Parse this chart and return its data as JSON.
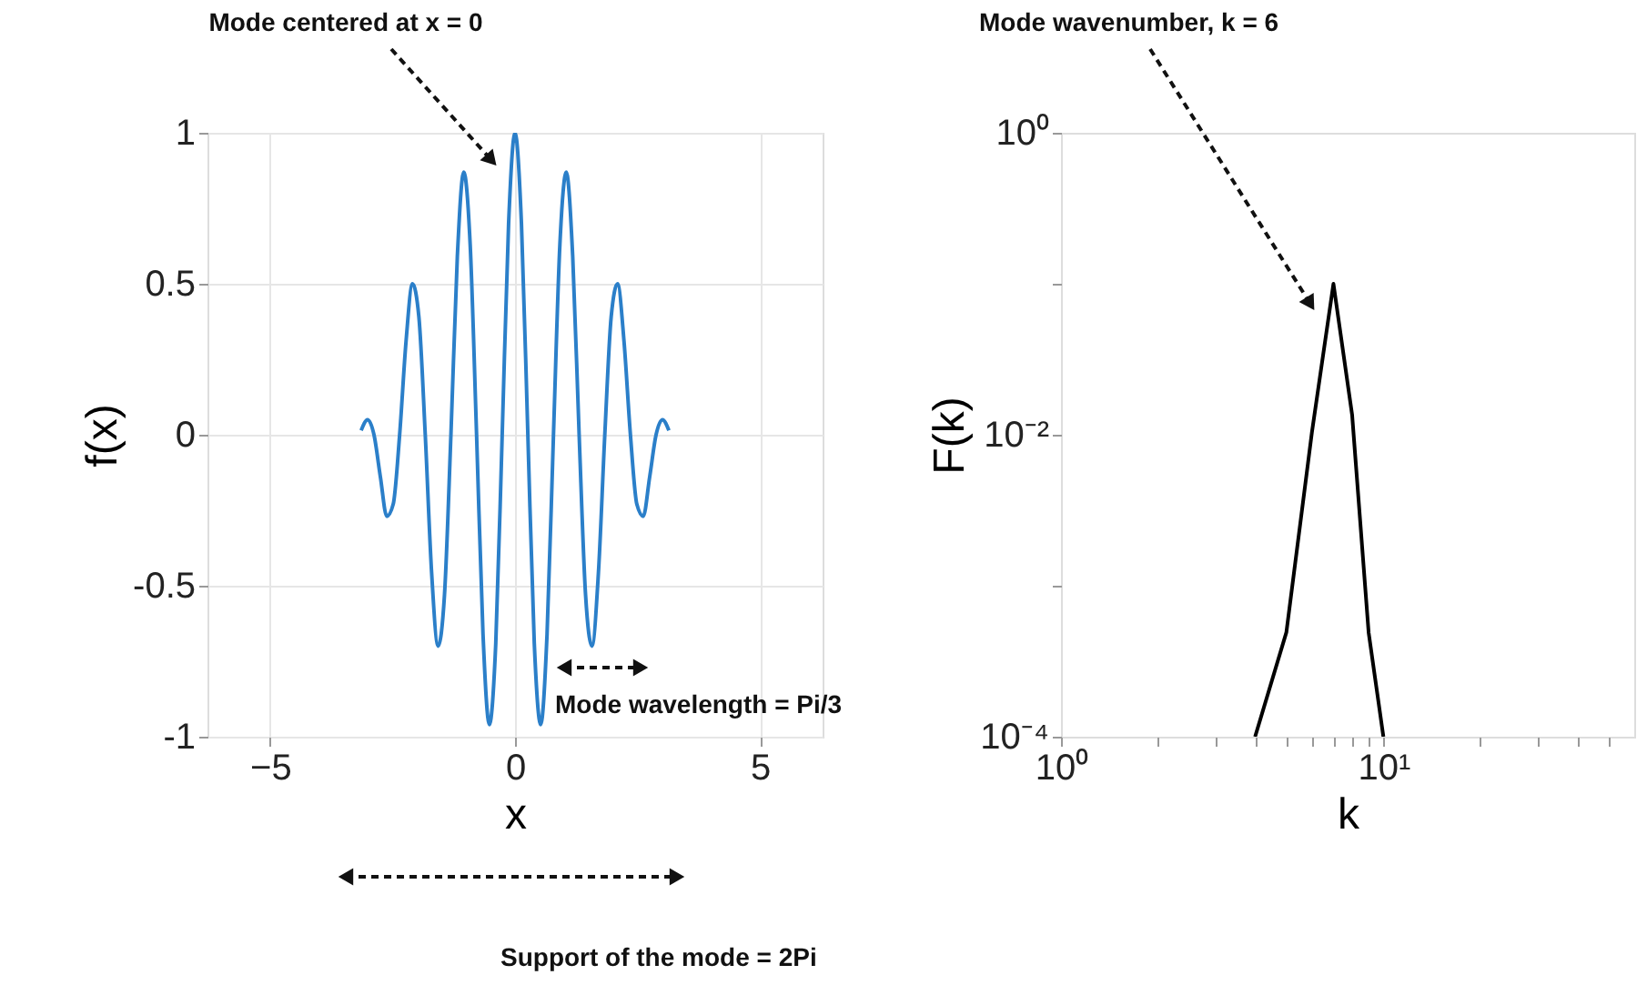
{
  "chart_data": [
    {
      "type": "line",
      "xlabel": "x",
      "ylabel": "f(x)",
      "xlim": [
        -6.28,
        6.28
      ],
      "ylim": [
        -1,
        1
      ],
      "xticks": [
        -5,
        0,
        5
      ],
      "yticks": [
        {
          "value": -1,
          "label": "-1"
        },
        {
          "value": -0.5,
          "label": "-0.5"
        },
        {
          "value": 0,
          "label": "0"
        },
        {
          "value": 0.5,
          "label": "0.5"
        },
        {
          "value": 1,
          "label": "1"
        }
      ],
      "grid": true,
      "marker": "none",
      "line_style": "solid",
      "series": [
        {
          "color": "#2b7fc9",
          "x": [
            -3.142,
            -3.011,
            -2.88,
            -2.749,
            -2.618,
            -2.487,
            -2.356,
            -2.225,
            -2.094,
            -1.963,
            -1.833,
            -1.702,
            -1.571,
            -1.44,
            -1.309,
            -1.178,
            -1.047,
            -0.916,
            -0.785,
            -0.654,
            -0.524,
            -0.393,
            -0.262,
            -0.131,
            0,
            0.131,
            0.262,
            0.393,
            0.524,
            0.654,
            0.785,
            0.916,
            1.047,
            1.178,
            1.309,
            1.44,
            1.571,
            1.702,
            1.833,
            1.963,
            2.094,
            2.225,
            2.356,
            2.487,
            2.618,
            2.749,
            2.88,
            3.011,
            3.142
          ],
          "values": [
            0.014,
            0.05,
            0,
            -0.14,
            -0.27,
            -0.23,
            0,
            0.31,
            0.5,
            0.39,
            0,
            -0.46,
            -0.7,
            -0.53,
            0,
            0.59,
            0.87,
            0.63,
            0,
            -0.66,
            -0.96,
            -0.69,
            0,
            0.7,
            1,
            0.7,
            0,
            -0.69,
            -0.96,
            -0.66,
            0,
            0.63,
            0.87,
            0.59,
            0,
            -0.53,
            -0.7,
            -0.46,
            0,
            0.39,
            0.5,
            0.31,
            0,
            -0.23,
            -0.27,
            -0.14,
            0,
            0.05,
            0.014
          ]
        }
      ],
      "annotations": [
        "Mode centered at x = 0",
        "Mode wavelength = Pi/3",
        "Support of the mode = 2Pi"
      ]
    },
    {
      "type": "line",
      "xlabel": "k",
      "ylabel": "F(k)",
      "log": "xy",
      "xlim": [
        1,
        60
      ],
      "ylim": [
        0.0001,
        1
      ],
      "xticks": [
        {
          "value": 1,
          "label": "10⁰"
        },
        {
          "value": 2,
          "label": null
        },
        {
          "value": 3,
          "label": null
        },
        {
          "value": 4,
          "label": null
        },
        {
          "value": 5,
          "label": null
        },
        {
          "value": 6,
          "label": null
        },
        {
          "value": 7,
          "label": null
        },
        {
          "value": 8,
          "label": null
        },
        {
          "value": 9,
          "label": null
        },
        {
          "value": 10,
          "label": "10¹"
        },
        {
          "value": 20,
          "label": null
        },
        {
          "value": 30,
          "label": null
        },
        {
          "value": 40,
          "label": null
        },
        {
          "value": 50,
          "label": null
        }
      ],
      "yticks": [
        {
          "value": 0.0001,
          "label": "10⁻⁴"
        },
        {
          "value": 0.001,
          "label": null
        },
        {
          "value": 0.01,
          "label": "10⁻²"
        },
        {
          "value": 0.1,
          "label": null
        },
        {
          "value": 1,
          "label": "10⁰"
        }
      ],
      "grid": false,
      "marker": "none",
      "line_style": "solid",
      "series": [
        {
          "color": "#000000",
          "x": [
            4,
            5,
            6,
            7,
            8,
            9,
            10
          ],
          "values": [
            0.0001,
            0.00049,
            0.0103,
            0.1,
            0.0135,
            0.00049,
            0.0001
          ]
        }
      ],
      "annotations": [
        "Mode wavenumber, k = 6"
      ]
    }
  ]
}
